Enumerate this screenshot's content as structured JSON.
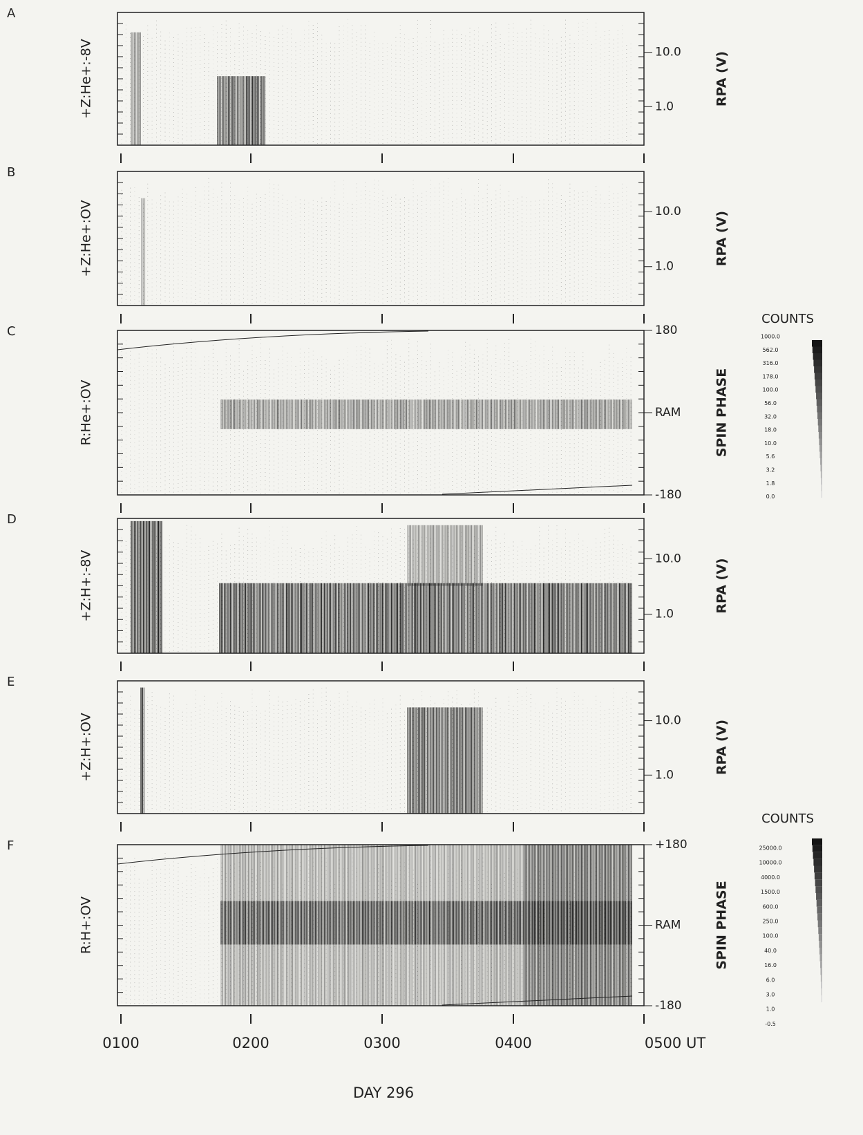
{
  "panels": [
    {
      "letter": "A",
      "ylabel": "+Z:He+:-8V",
      "right_label": "RPA (V)",
      "yticks": [
        "10.0",
        "1.0"
      ]
    },
    {
      "letter": "B",
      "ylabel": "+Z:He+:OV",
      "right_label": "RPA (V)",
      "yticks": [
        "10.0",
        "1.0"
      ]
    },
    {
      "letter": "C",
      "ylabel": "R:He+:OV",
      "right_label": "SPIN PHASE",
      "yticks": [
        "180",
        "RAM",
        "-180"
      ]
    },
    {
      "letter": "D",
      "ylabel": "+Z:H+:-8V",
      "right_label": "RPA (V)",
      "yticks": [
        "10.0",
        "1.0"
      ]
    },
    {
      "letter": "E",
      "ylabel": "+Z:H+:OV",
      "right_label": "RPA (V)",
      "yticks": [
        "10.0",
        "1.0"
      ]
    },
    {
      "letter": "F",
      "ylabel": "R:H+:OV",
      "right_label": "SPIN PHASE",
      "yticks": [
        "+180",
        "RAM",
        "-180"
      ]
    }
  ],
  "x_axis": {
    "ticks": [
      "0100",
      "0200",
      "0300",
      "0400",
      "0500 UT"
    ],
    "label": "DAY 296"
  },
  "colorbars": [
    {
      "title": "COUNTS",
      "labels": [
        "1000.0",
        "562.0",
        "316.0",
        "178.0",
        "100.0",
        "56.0",
        "32.0",
        "18.0",
        "10.0",
        "5.6",
        "3.2",
        "1.8",
        "0.0"
      ]
    },
    {
      "title": "COUNTS",
      "labels": [
        "25000.0",
        "10000.0",
        "4000.0",
        "1500.0",
        "600.0",
        "250.0",
        "100.0",
        "40.0",
        "16.0",
        "6.0",
        "3.0",
        "1.0",
        "-0.5"
      ]
    }
  ]
}
